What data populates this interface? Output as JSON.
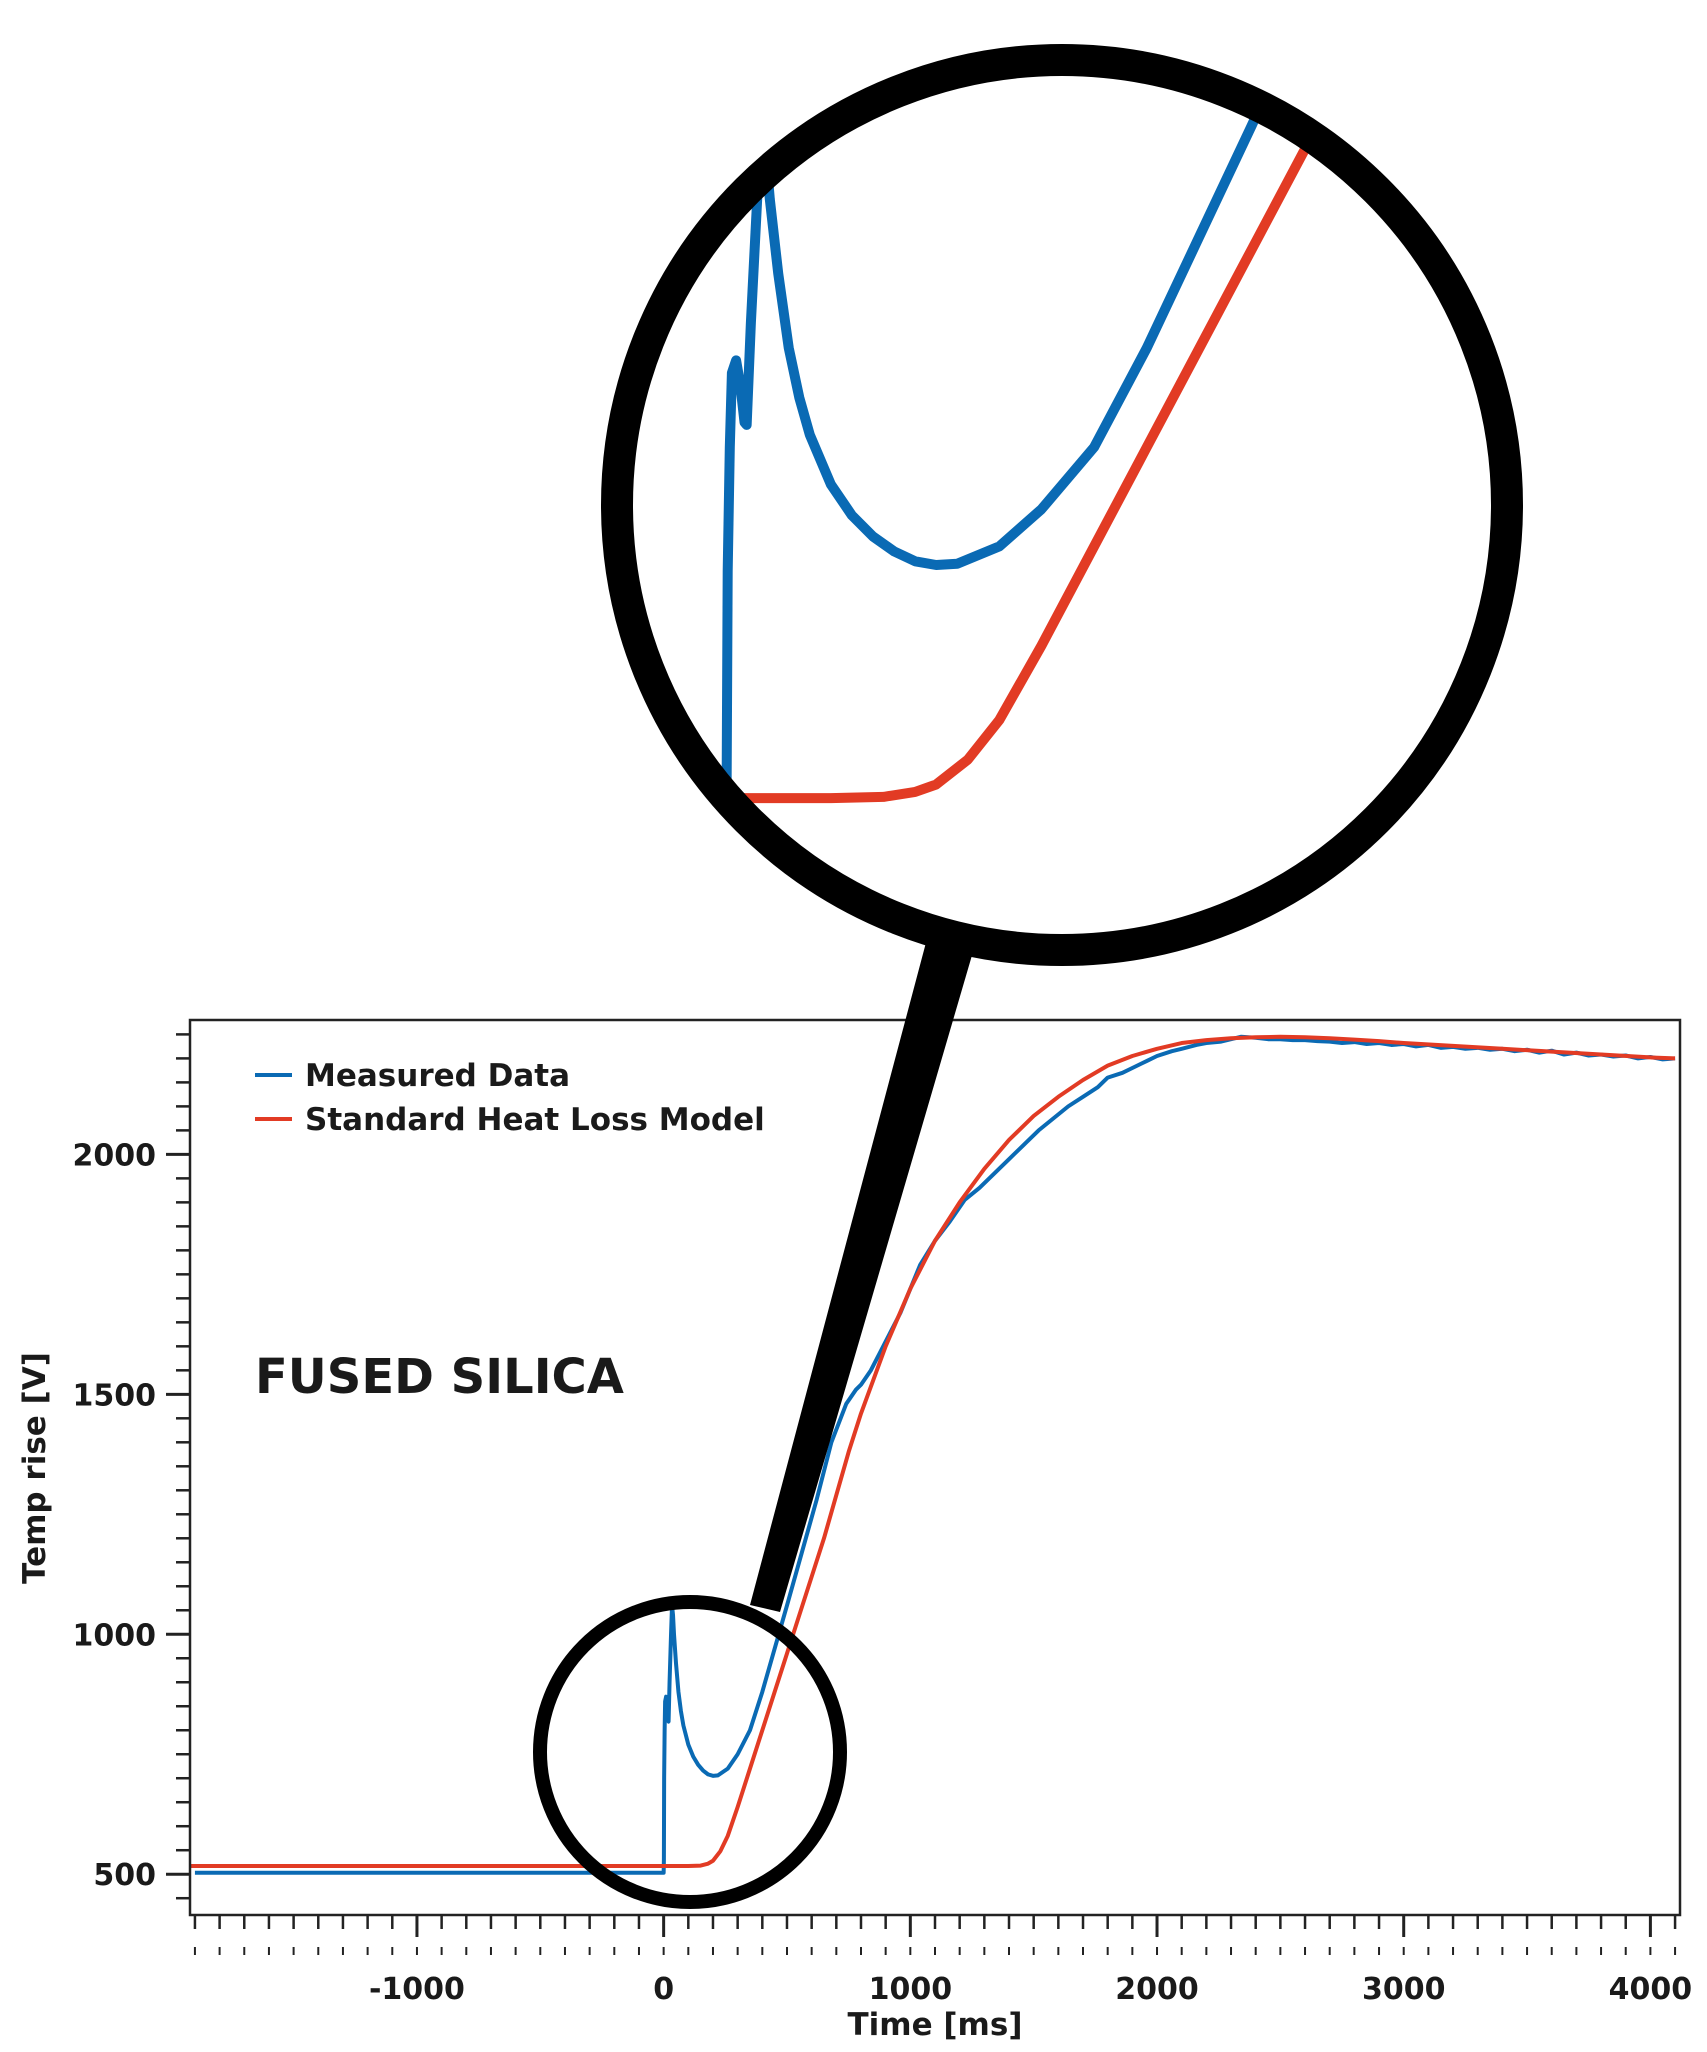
{
  "chart_data": {
    "type": "line",
    "title": "",
    "annotation": "FUSED SILICA",
    "xlabel": "Time [ms]",
    "ylabel": "Temp rise [V]",
    "xlim": [
      -1920,
      4120
    ],
    "ylim": [
      415,
      2280
    ],
    "xticks": [
      -1000,
      0,
      1000,
      2000,
      3000,
      4000
    ],
    "xtick_labels": [
      "-1000",
      "0",
      "1000",
      "2000",
      "3000",
      "4000"
    ],
    "yticks": [
      500,
      1000,
      1500,
      2000
    ],
    "ytick_labels": [
      "500",
      "1000",
      "1500",
      "2000"
    ],
    "grid": false,
    "legend": {
      "position": "top-left"
    },
    "zoom_inset": {
      "x_range": [
        -200,
        650
      ],
      "y_range": [
        455,
        1080
      ]
    },
    "colors": {
      "measured": "#0a6ab4",
      "model": "#e23b24",
      "frame": "#000000"
    },
    "series": [
      {
        "name": "Measured Data",
        "color": "#0a6ab4",
        "x": [
          -1900,
          -1000,
          -500,
          -100,
          0,
          1,
          2,
          4,
          6,
          10,
          14,
          18,
          20,
          24,
          30,
          34,
          38,
          42,
          50,
          60,
          70,
          80,
          100,
          120,
          140,
          160,
          180,
          200,
          220,
          260,
          300,
          350,
          400,
          450,
          500,
          560,
          620,
          680,
          740,
          780,
          800,
          840,
          880,
          920,
          960,
          1000,
          1040,
          1100,
          1160,
          1220,
          1280,
          1340,
          1400,
          1460,
          1520,
          1580,
          1640,
          1700,
          1760,
          1800,
          1860,
          1900,
          1960,
          2000,
          2060,
          2100,
          2160,
          2200,
          2260,
          2300,
          2340,
          2400,
          2450,
          2500,
          2550,
          2600,
          2650,
          2700,
          2750,
          2800,
          2850,
          2900,
          2950,
          3000,
          3050,
          3100,
          3150,
          3200,
          3250,
          3300,
          3350,
          3400,
          3450,
          3500,
          3550,
          3600,
          3650,
          3700,
          3750,
          3800,
          3850,
          3900,
          3950,
          4000,
          4050,
          4100
        ],
        "y": [
          503,
          503,
          503,
          503,
          503,
          530,
          700,
          800,
          860,
          870,
          850,
          820,
          818,
          900,
          1000,
          1060,
          1040,
          1000,
          940,
          880,
          840,
          810,
          770,
          745,
          728,
          716,
          708,
          705,
          706,
          720,
          750,
          800,
          880,
          970,
          1060,
          1170,
          1280,
          1400,
          1480,
          1510,
          1520,
          1550,
          1590,
          1630,
          1670,
          1720,
          1770,
          1820,
          1860,
          1905,
          1930,
          1960,
          1990,
          2020,
          2050,
          2075,
          2100,
          2120,
          2140,
          2160,
          2170,
          2180,
          2195,
          2205,
          2215,
          2220,
          2228,
          2232,
          2235,
          2240,
          2245,
          2243,
          2240,
          2240,
          2238,
          2238,
          2236,
          2235,
          2232,
          2234,
          2230,
          2232,
          2228,
          2230,
          2225,
          2228,
          2222,
          2224,
          2220,
          2222,
          2218,
          2220,
          2215,
          2218,
          2212,
          2216,
          2208,
          2212,
          2206,
          2208,
          2204,
          2206,
          2200,
          2203,
          2198,
          2200
        ]
      },
      {
        "name": "Standard Heat Loss Model",
        "color": "#e23b24",
        "x": [
          -1920,
          -1000,
          0,
          100,
          150,
          180,
          200,
          230,
          260,
          300,
          350,
          400,
          450,
          500,
          550,
          600,
          650,
          700,
          750,
          800,
          850,
          900,
          950,
          1000,
          1100,
          1200,
          1300,
          1400,
          1500,
          1600,
          1700,
          1800,
          1900,
          2000,
          2100,
          2200,
          2300,
          2400,
          2500,
          2600,
          2700,
          2800,
          2900,
          3000,
          3200,
          3400,
          3600,
          3800,
          4000,
          4100
        ],
        "y": [
          517,
          517,
          517,
          517,
          518,
          522,
          528,
          548,
          580,
          640,
          720,
          800,
          880,
          960,
          1040,
          1120,
          1200,
          1290,
          1380,
          1460,
          1530,
          1600,
          1660,
          1720,
          1820,
          1900,
          1970,
          2030,
          2080,
          2120,
          2155,
          2185,
          2205,
          2220,
          2232,
          2238,
          2242,
          2244,
          2245,
          2244,
          2242,
          2239,
          2236,
          2232,
          2226,
          2220,
          2214,
          2208,
          2202,
          2200
        ]
      }
    ]
  }
}
